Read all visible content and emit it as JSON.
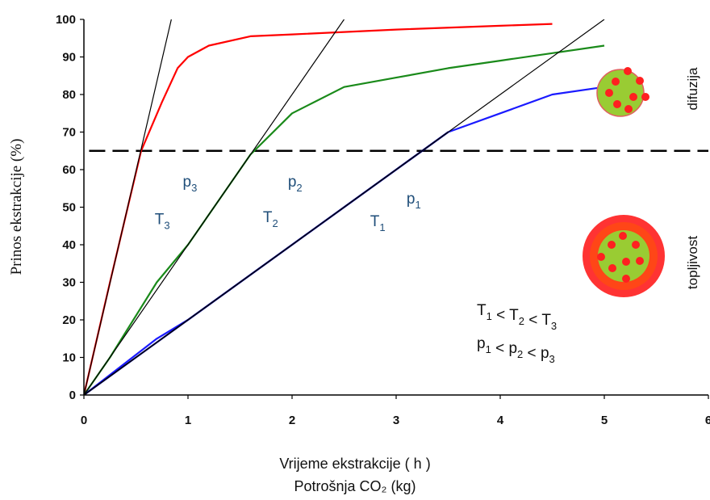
{
  "chart_data": {
    "type": "line",
    "ylabel": "Prinos ekstrakcije (%)",
    "xlabel": "Vrijeme ekstrakcije ( h )",
    "xlabel2": "Potrošnja CO₂ (kg)",
    "xlim": [
      0,
      6
    ],
    "ylim": [
      0,
      100
    ],
    "x_ticks": [
      "0",
      "1",
      "2",
      "3",
      "4",
      "5",
      "6"
    ],
    "y_ticks": [
      "0",
      "10",
      "20",
      "30",
      "40",
      "50",
      "60",
      "70",
      "80",
      "90",
      "100"
    ],
    "series": [
      {
        "color": "#ff0000",
        "x": [
          0,
          0.25,
          0.55,
          0.75,
          0.9,
          1.0,
          1.2,
          1.6,
          2.0,
          3.0,
          4.0,
          4.5
        ],
        "y": [
          0,
          30,
          65,
          78,
          87,
          90,
          93,
          95.5,
          96,
          97.3,
          98.3,
          98.8
        ]
      },
      {
        "color": "#1a8a1a",
        "x": [
          0,
          0.25,
          0.7,
          1.0,
          1.5,
          1.6,
          2.0,
          2.5,
          3.0,
          3.5,
          4.0,
          4.5,
          5.0
        ],
        "y": [
          0,
          10,
          30,
          40,
          60,
          64,
          75,
          82,
          84.5,
          87,
          89,
          91,
          93
        ]
      },
      {
        "color": "#1a1aff",
        "x": [
          0,
          0.7,
          1.0,
          1.5,
          2.0,
          2.5,
          3.0,
          3.5,
          4.0,
          4.5,
          5.0
        ],
        "y": [
          0,
          15,
          20,
          30,
          40,
          50,
          60,
          70,
          75,
          80,
          82
        ]
      },
      {
        "color": "#000080",
        "x": [
          0,
          1.0,
          2.0,
          3.0,
          3.5
        ],
        "y": [
          0,
          20,
          40,
          60,
          70
        ]
      }
    ],
    "tangent_lines": [
      {
        "color": "#000000",
        "x": [
          0,
          0.84
        ],
        "y": [
          0,
          100
        ]
      },
      {
        "color": "#000000",
        "x": [
          0,
          2.5
        ],
        "y": [
          0,
          100
        ]
      },
      {
        "color": "#000000",
        "x": [
          0,
          5.0
        ],
        "y": [
          0,
          100
        ]
      }
    ],
    "reference_line": {
      "y": 65,
      "style": "dashed",
      "color": "#000000"
    },
    "annotations": [
      {
        "base": "p",
        "sub": "3",
        "x": 0.95,
        "y": 55.5
      },
      {
        "base": "T",
        "sub": "3",
        "x": 0.68,
        "y": 45.5
      },
      {
        "base": "p",
        "sub": "2",
        "x": 1.96,
        "y": 55.5
      },
      {
        "base": "T",
        "sub": "2",
        "x": 1.72,
        "y": 46
      },
      {
        "base": "p",
        "sub": "1",
        "x": 3.1,
        "y": 51
      },
      {
        "base": "T",
        "sub": "1",
        "x": 2.75,
        "y": 45
      }
    ],
    "inequalities": [
      {
        "parts": [
          [
            "T",
            "1"
          ],
          " < ",
          [
            "T",
            "2"
          ],
          " < ",
          [
            "T",
            "3"
          ]
        ]
      },
      {
        "parts": [
          [
            "p",
            "1"
          ],
          " < ",
          [
            "p",
            "2"
          ],
          " < ",
          [
            "p",
            "3"
          ]
        ]
      }
    ],
    "side_labels": {
      "top": "difuzija",
      "bottom": "topljivost"
    },
    "icons": [
      "particle-diffusion-icon",
      "particle-solubility-icon"
    ]
  }
}
